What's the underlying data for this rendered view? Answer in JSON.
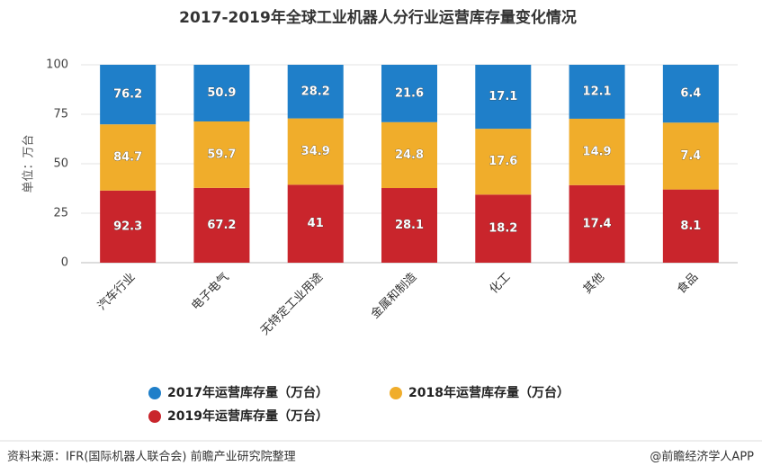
{
  "chart_data": {
    "type": "bar",
    "stacked": true,
    "stack_mode": "percent",
    "title": "2017-2019年全球工业机器人分行业运营库存量变化情况",
    "y_label": "单位：万台",
    "categories": [
      "汽车行业",
      "电子电气",
      "无特定工业用途",
      "金属和制造",
      "化工",
      "其他",
      "食品"
    ],
    "series": [
      {
        "name": "2017年运营库存量（万台）",
        "color": "#1f7fc9",
        "values": [
          76.2,
          50.9,
          28.2,
          21.6,
          17.1,
          12.1,
          6.4
        ]
      },
      {
        "name": "2018年运营库存量（万台）",
        "color": "#f0ad2b",
        "values": [
          84.7,
          59.7,
          34.9,
          24.8,
          17.6,
          14.9,
          7.4
        ]
      },
      {
        "name": "2019年运营库存量（万台）",
        "color": "#c9252c",
        "values": [
          92.3,
          67.2,
          41,
          28.1,
          18.2,
          17.4,
          8.1
        ]
      }
    ],
    "ylim": [
      0,
      100
    ],
    "yticks": [
      0,
      25,
      50,
      75,
      100
    ],
    "grid": true,
    "source": "资料来源：IFR(国际机器人联合会) 前瞻产业研究院整理",
    "credit": "@前瞻经济学人APP"
  }
}
